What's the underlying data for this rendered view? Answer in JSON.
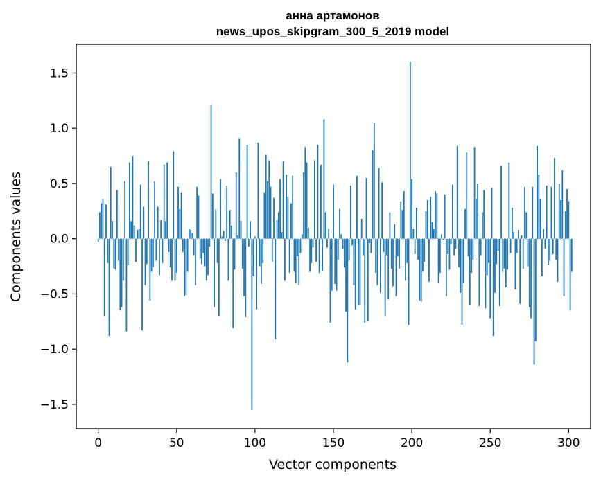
{
  "chart_data": {
    "type": "bar",
    "title": "анна артамонов",
    "subtitle": "news_upos_skipgram_300_5_2019 model",
    "xlabel": "Vector components",
    "ylabel": "Components values",
    "xlim": [
      -14,
      314
    ],
    "ylim": [
      -1.72,
      1.76
    ],
    "xticks": [
      0,
      50,
      100,
      150,
      200,
      250,
      300
    ],
    "xtick_labels": [
      "0",
      "50",
      "100",
      "150",
      "200",
      "250",
      "300"
    ],
    "yticks": [
      -1.5,
      -1.0,
      -0.5,
      0.0,
      0.5,
      1.0,
      1.5
    ],
    "ytick_labels": [
      "−1.5",
      "−1.0",
      "−0.5",
      "0.0",
      "0.5",
      "1.0",
      "1.5"
    ],
    "bar_color": "#1f77b4",
    "grid": false,
    "x_start": 0,
    "values": [
      -0.03,
      0.24,
      0.32,
      0.36,
      -0.7,
      0.31,
      -0.22,
      -0.88,
      0.65,
      0.16,
      -0.27,
      -0.28,
      0.44,
      -0.2,
      -0.65,
      -0.62,
      -0.38,
      0.52,
      -0.84,
      -0.24,
      0.69,
      0.16,
      0.75,
      0.12,
      -0.21,
      0.08,
      0.09,
      0.49,
      -0.83,
      0.29,
      -0.42,
      -0.23,
      0.7,
      -0.56,
      -0.3,
      -0.26,
      0.52,
      -0.2,
      0.29,
      -0.33,
      0.17,
      -0.22,
      0.67,
      0.16,
      0.69,
      -0.12,
      -0.26,
      -0.38,
      0.79,
      -0.38,
      -0.31,
      0.47,
      0.27,
      0.42,
      -0.12,
      -0.52,
      -0.51,
      -0.3,
      0.09,
      0.08,
      0.05,
      -0.15,
      -0.42,
      0.47,
      0.39,
      -0.18,
      -0.23,
      -0.13,
      -0.25,
      -0.38,
      -0.33,
      -0.07,
      1.21,
      0.41,
      -0.62,
      0.27,
      -0.22,
      -0.7,
      0.54,
      0.02,
      0.07,
      -0.02,
      0.48,
      -0.38,
      0.26,
      0.12,
      -0.81,
      -0.28,
      0.6,
      0.03,
      0.91,
      0.16,
      -0.27,
      -0.52,
      -0.71,
      0.85,
      -0.07,
      0.16,
      -1.55,
      -0.34,
      0.02,
      -0.64,
      0.87,
      -0.25,
      -0.41,
      -0.22,
      0.42,
      0.76,
      0.52,
      0.71,
      0.47,
      -0.21,
      0.37,
      -0.91,
      0.17,
      0.24,
      0.54,
      0.06,
      0.7,
      -0.38,
      0.58,
      0.38,
      -0.31,
      0.32,
      0.57,
      -0.3,
      -0.4,
      -0.16,
      -0.42,
      -0.13,
      0.04,
      0.6,
      0.83,
      0.69,
      0.1,
      -0.3,
      -0.22,
      -0.08,
      0.71,
      -0.21,
      0.85,
      -0.31,
      0.67,
      -0.29,
      1.08,
      0.24,
      -0.08,
      0.09,
      -0.76,
      -0.47,
      0.49,
      -0.41,
      -0.47,
      -0.19,
      0.27,
      0.04,
      -0.09,
      -0.26,
      -0.66,
      -1.12,
      -0.2,
      0.48,
      -0.06,
      -0.42,
      -0.64,
      0.57,
      -0.6,
      -0.6,
      0.18,
      -0.15,
      -0.76,
      0.55,
      -0.75,
      -0.04,
      -0.13,
      0.8,
      1.05,
      -0.31,
      -0.42,
      0.64,
      -0.49,
      0.51,
      -0.12,
      -0.7,
      -0.15,
      -0.55,
      0.24,
      -0.27,
      -0.43,
      0.13,
      -0.52,
      -0.16,
      -0.27,
      0.34,
      0.26,
      0.43,
      -0.38,
      -0.22,
      -0.78,
      1.6,
      0.54,
      0.09,
      -0.14,
      0.28,
      -0.19,
      -0.56,
      -0.57,
      -0.3,
      -0.21,
      0.25,
      0.35,
      -0.39,
      0.38,
      0.15,
      0.09,
      0.43,
      0.41,
      -0.4,
      -0.31,
      0.04,
      -0.01,
      0.4,
      -0.52,
      -0.14,
      -0.28,
      -0.05,
      0.49,
      -0.15,
      -0.09,
      0.84,
      -0.26,
      -0.49,
      -0.78,
      -0.4,
      0.27,
      0.78,
      -0.16,
      -0.6,
      -0.31,
      -0.19,
      0.83,
      0.36,
      0.5,
      -0.61,
      -0.15,
      0.24,
      0.44,
      -0.63,
      -0.33,
      -0.22,
      -0.72,
      0.46,
      -0.88,
      -0.49,
      -0.23,
      -0.11,
      -0.61,
      0.66,
      -0.3,
      -0.27,
      -0.44,
      -0.28,
      0.69,
      -0.13,
      0.28,
      0.06,
      -0.46,
      -0.13,
      0.08,
      -0.59,
      0.03,
      -0.27,
      0.47,
      0.24,
      -0.25,
      -0.62,
      -0.72,
      0.47,
      -1.14,
      -0.93,
      0.84,
      0.58,
      0.36,
      -0.34,
      0.09,
      -0.09,
      0.48,
      -0.24,
      -0.2,
      0.47,
      -0.14,
      0.73,
      -0.19,
      -0.39,
      0.5,
      0.35,
      0.62,
      -0.52,
      0.25,
      0.45,
      0.34,
      -0.65,
      -0.3
    ]
  }
}
